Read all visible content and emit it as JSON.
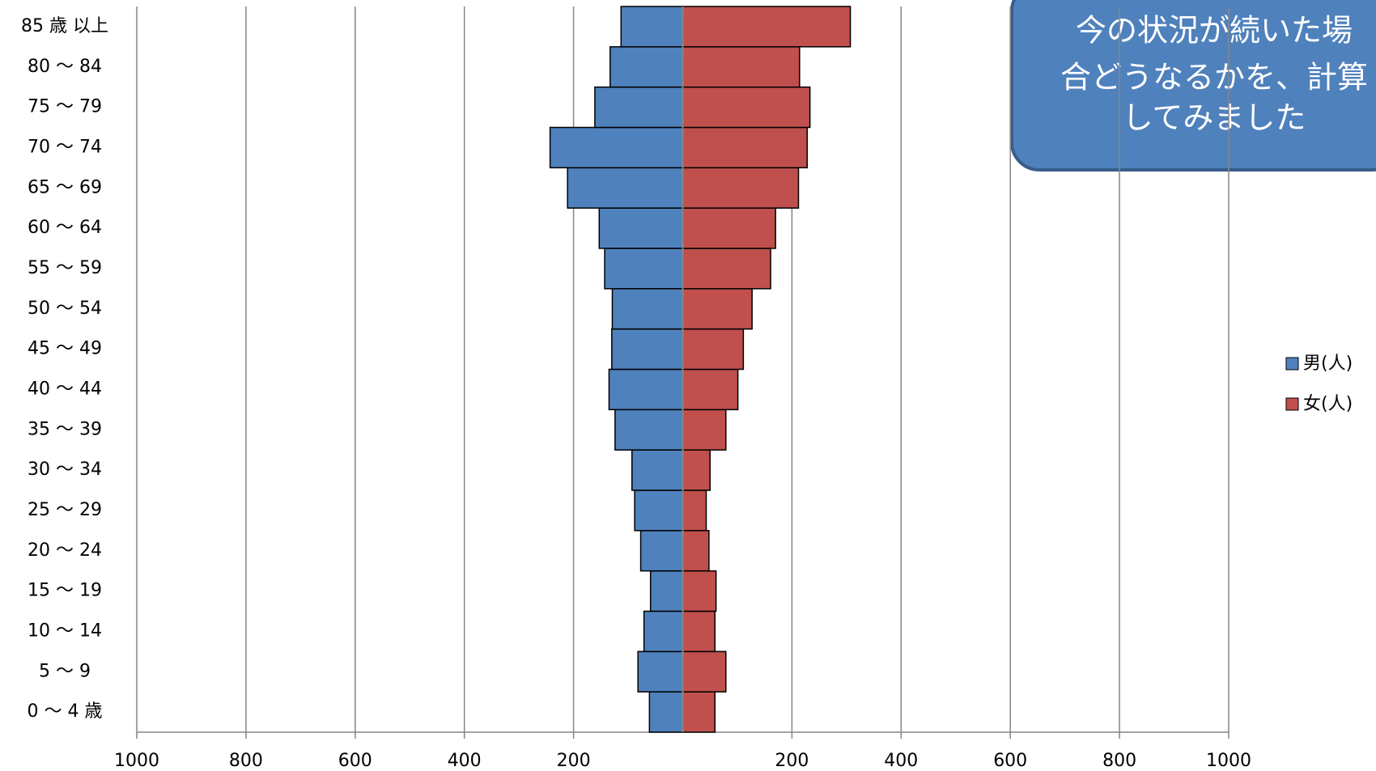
{
  "chart_data": {
    "type": "pyramid",
    "categories": [
      "0 ～ 4 歳",
      "5 ～ 9",
      "10 ～ 14",
      "15 ～ 19",
      "20 ～ 24",
      "25 ～ 29",
      "30 ～ 34",
      "35 ～ 39",
      "40 ～ 44",
      "45 ～ 49",
      "50 ～ 54",
      "55 ～ 59",
      "60 ～ 64",
      "65 ～ 69",
      "70 ～ 74",
      "75 ～ 79",
      "80 ～ 84",
      "85 歳 以上"
    ],
    "series": [
      {
        "name": "男(人)",
        "color": "#4f81bd",
        "values": [
          -61,
          -82,
          -71,
          -59,
          -77,
          -88,
          -93,
          -124,
          -135,
          -130,
          -129,
          -143,
          -153,
          -211,
          -243,
          -161,
          -133,
          -113
        ]
      },
      {
        "name": "女(人)",
        "color": "#c0504d",
        "values": [
          59,
          79,
          59,
          61,
          48,
          43,
          50,
          79,
          101,
          111,
          127,
          161,
          170,
          212,
          228,
          233,
          214,
          307
        ]
      }
    ],
    "xlim": [
      -1000,
      1000
    ],
    "xticks": [
      {
        "value": -1000,
        "label": "1000"
      },
      {
        "value": -800,
        "label": "800"
      },
      {
        "value": -600,
        "label": "600"
      },
      {
        "value": -400,
        "label": "400"
      },
      {
        "value": -200,
        "label": "200"
      },
      200,
      400,
      600,
      800,
      1000
    ],
    "grid": true,
    "legend": "right",
    "annotation": [
      "今の状況が続いた場",
      "合どうなるかを、計算",
      "してみました"
    ]
  }
}
